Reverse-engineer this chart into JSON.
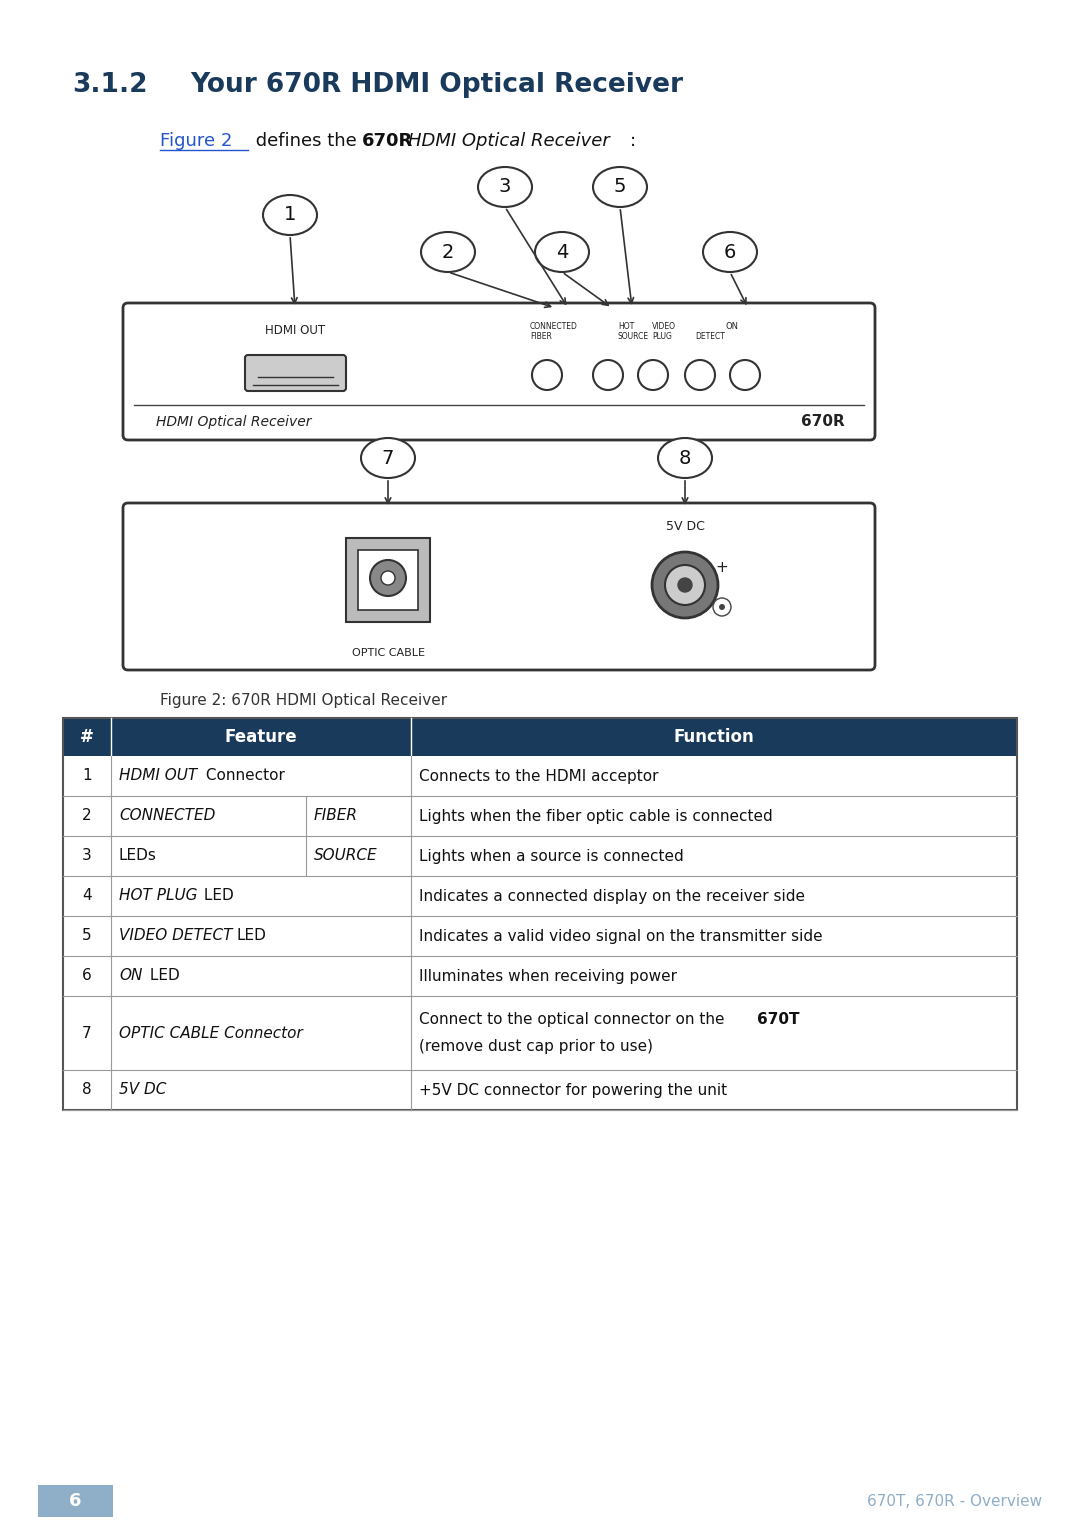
{
  "title_section": "3.1.2",
  "title_text": "Your 670R HDMI Optical Receiver",
  "figure_caption": "Figure 2: 670R HDMI Optical Receiver",
  "header_color": "#1a3a5c",
  "link_color": "#2255cc",
  "title_color": "#1a3a5c",
  "page_bg": "#ffffff",
  "page_number": "6",
  "page_footer_text": "670T, 670R - Overview",
  "footer_bg": "#8faec8",
  "table_rows": [
    {
      "num": "1",
      "feature": "HDMI OUT Connector",
      "sub_feature": "",
      "function": "Connects to the HDMI acceptor"
    },
    {
      "num": "2",
      "feature": "CONNECTED",
      "sub_feature": "FIBER",
      "function": "Lights when the fiber optic cable is connected"
    },
    {
      "num": "3",
      "feature": "LEDs",
      "sub_feature": "SOURCE",
      "function": "Lights when a source is connected"
    },
    {
      "num": "4",
      "feature": "HOT PLUG LED",
      "sub_feature": "",
      "function": "Indicates a connected display on the receiver side"
    },
    {
      "num": "5",
      "feature": "VIDEO DETECT LED",
      "sub_feature": "",
      "function": "Indicates a valid video signal on the transmitter side"
    },
    {
      "num": "6",
      "feature": "ON LED",
      "sub_feature": "",
      "function": "Illuminates when receiving power"
    },
    {
      "num": "7",
      "feature": "OPTIC CABLE Connector",
      "sub_feature": "",
      "function": "Connect to the optical connector on the 670T\n(remove dust cap prior to use)"
    },
    {
      "num": "8",
      "feature": "5V DC",
      "sub_feature": "",
      "function": "+5V DC connector for powering the unit"
    }
  ]
}
